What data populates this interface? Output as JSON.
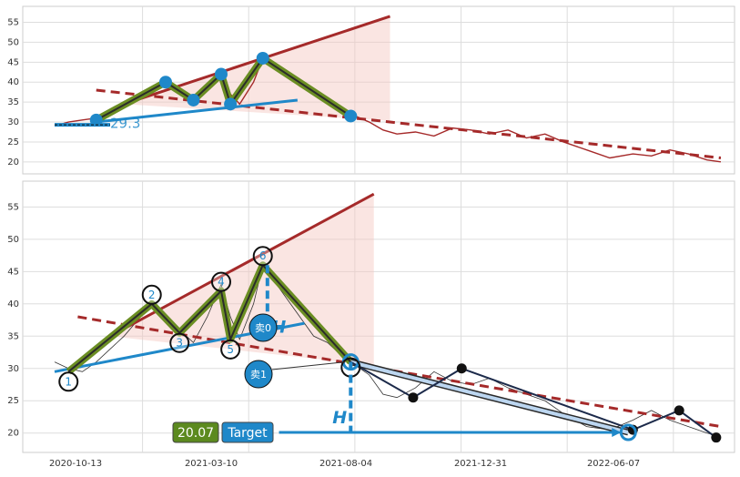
{
  "chart_data": [
    {
      "panel": "top",
      "type": "line",
      "title": "",
      "xlabel": "",
      "ylabel": "",
      "ylim": [
        17,
        59
      ],
      "yticks": [
        20,
        25,
        30,
        35,
        40,
        45,
        50,
        55
      ],
      "grid": true,
      "price_series": [
        {
          "x": 0,
          "y": 29
        },
        {
          "x": 6,
          "y": 30
        },
        {
          "x": 12,
          "y": 30.5
        },
        {
          "x": 18,
          "y": 31
        },
        {
          "x": 24,
          "y": 32
        },
        {
          "x": 30,
          "y": 34
        },
        {
          "x": 36,
          "y": 36
        },
        {
          "x": 42,
          "y": 38
        },
        {
          "x": 48,
          "y": 40
        },
        {
          "x": 54,
          "y": 37
        },
        {
          "x": 60,
          "y": 35.5
        },
        {
          "x": 66,
          "y": 38
        },
        {
          "x": 72,
          "y": 42
        },
        {
          "x": 76,
          "y": 37
        },
        {
          "x": 80,
          "y": 34.5
        },
        {
          "x": 86,
          "y": 40
        },
        {
          "x": 90,
          "y": 46
        },
        {
          "x": 94,
          "y": 44
        },
        {
          "x": 100,
          "y": 42
        },
        {
          "x": 106,
          "y": 39
        },
        {
          "x": 112,
          "y": 37
        },
        {
          "x": 118,
          "y": 35
        },
        {
          "x": 124,
          "y": 33
        },
        {
          "x": 130,
          "y": 31.5
        },
        {
          "x": 136,
          "y": 30
        },
        {
          "x": 142,
          "y": 28
        },
        {
          "x": 148,
          "y": 27
        },
        {
          "x": 156,
          "y": 27.5
        },
        {
          "x": 164,
          "y": 26.5
        },
        {
          "x": 172,
          "y": 28.5
        },
        {
          "x": 180,
          "y": 28
        },
        {
          "x": 188,
          "y": 27
        },
        {
          "x": 196,
          "y": 28
        },
        {
          "x": 204,
          "y": 26
        },
        {
          "x": 212,
          "y": 27
        },
        {
          "x": 220,
          "y": 25
        },
        {
          "x": 230,
          "y": 23
        },
        {
          "x": 240,
          "y": 21
        },
        {
          "x": 250,
          "y": 22
        },
        {
          "x": 258,
          "y": 21.5
        },
        {
          "x": 266,
          "y": 23
        },
        {
          "x": 274,
          "y": 22
        },
        {
          "x": 282,
          "y": 20.5
        },
        {
          "x": 288,
          "y": 20
        }
      ],
      "pattern_points": [
        {
          "x": 18,
          "y": 30.5
        },
        {
          "x": 48,
          "y": 40
        },
        {
          "x": 60,
          "y": 35.5
        },
        {
          "x": 72,
          "y": 42
        },
        {
          "x": 76,
          "y": 34.5
        },
        {
          "x": 90,
          "y": 46
        },
        {
          "x": 128,
          "y": 31.5
        }
      ],
      "upper_trendline": [
        {
          "x": 30,
          "y": 34.5
        },
        {
          "x": 145,
          "y": 56.5
        }
      ],
      "lower_trendline_dashed": [
        {
          "x": 18,
          "y": 38
        },
        {
          "x": 288,
          "y": 21
        }
      ],
      "support_line": [
        {
          "x": 18,
          "y": 30
        },
        {
          "x": 105,
          "y": 35.5
        }
      ],
      "annotation_text": "29.3",
      "target_triangle_shaded": [
        {
          "x": 30,
          "y": 34.5
        },
        {
          "x": 145,
          "y": 56.5
        },
        {
          "x": 145,
          "y": 30.3
        }
      ]
    },
    {
      "panel": "bottom",
      "type": "line",
      "title": "",
      "xlabel": "",
      "ylabel": "",
      "ylim": [
        17,
        59
      ],
      "yticks": [
        20,
        25,
        30,
        35,
        40,
        45,
        50,
        55
      ],
      "grid": true,
      "x_tick_labels": [
        "2020-10-13",
        "2021-03-10",
        "2021-08-04",
        "2021-12-31",
        "2022-06-07"
      ],
      "price_series": [
        {
          "x": 0,
          "y": 31
        },
        {
          "x": 6,
          "y": 30
        },
        {
          "x": 12,
          "y": 29.5
        },
        {
          "x": 18,
          "y": 31
        },
        {
          "x": 24,
          "y": 33
        },
        {
          "x": 30,
          "y": 35
        },
        {
          "x": 36,
          "y": 37.5
        },
        {
          "x": 42,
          "y": 40
        },
        {
          "x": 48,
          "y": 38
        },
        {
          "x": 54,
          "y": 36
        },
        {
          "x": 60,
          "y": 34
        },
        {
          "x": 66,
          "y": 38
        },
        {
          "x": 72,
          "y": 43
        },
        {
          "x": 76,
          "y": 38
        },
        {
          "x": 80,
          "y": 34.5
        },
        {
          "x": 86,
          "y": 40
        },
        {
          "x": 90,
          "y": 46
        },
        {
          "x": 94,
          "y": 44
        },
        {
          "x": 100,
          "y": 41
        },
        {
          "x": 106,
          "y": 38
        },
        {
          "x": 112,
          "y": 35
        },
        {
          "x": 118,
          "y": 34
        },
        {
          "x": 124,
          "y": 32
        },
        {
          "x": 130,
          "y": 30.5
        },
        {
          "x": 136,
          "y": 29
        },
        {
          "x": 142,
          "y": 26
        },
        {
          "x": 148,
          "y": 25.5
        },
        {
          "x": 156,
          "y": 27
        },
        {
          "x": 164,
          "y": 29.5
        },
        {
          "x": 172,
          "y": 28
        },
        {
          "x": 180,
          "y": 27.5
        },
        {
          "x": 188,
          "y": 28.5
        },
        {
          "x": 196,
          "y": 27
        },
        {
          "x": 204,
          "y": 26
        },
        {
          "x": 212,
          "y": 25
        },
        {
          "x": 220,
          "y": 23
        },
        {
          "x": 230,
          "y": 21
        },
        {
          "x": 240,
          "y": 20.5
        },
        {
          "x": 250,
          "y": 22
        },
        {
          "x": 258,
          "y": 23.5
        },
        {
          "x": 266,
          "y": 22
        },
        {
          "x": 274,
          "y": 21
        },
        {
          "x": 282,
          "y": 20
        },
        {
          "x": 288,
          "y": 19.5
        }
      ],
      "pattern_points": [
        {
          "label": "1",
          "x": 6,
          "y": 29.5
        },
        {
          "label": "2",
          "x": 42,
          "y": 40
        },
        {
          "label": "3",
          "x": 54,
          "y": 35.5
        },
        {
          "label": "4",
          "x": 72,
          "y": 42
        },
        {
          "label": "5",
          "x": 76,
          "y": 34.5
        },
        {
          "label": "6",
          "x": 90,
          "y": 46
        }
      ],
      "zigzag_ends": [
        {
          "x": 90,
          "y": 46
        },
        {
          "x": 128,
          "y": 31
        }
      ],
      "upper_trendline": [
        {
          "x": 24,
          "y": 35
        },
        {
          "x": 138,
          "y": 57
        }
      ],
      "lower_trendline_dashed": [
        {
          "x": 10,
          "y": 38
        },
        {
          "x": 288,
          "y": 21
        }
      ],
      "support_line": [
        {
          "x": 0,
          "y": 29.5
        },
        {
          "x": 108,
          "y": 37
        }
      ],
      "target_triangle_shaded": [
        {
          "x": 24,
          "y": 35
        },
        {
          "x": 138,
          "y": 57
        },
        {
          "x": 138,
          "y": 30.5
        }
      ],
      "breakout_point": {
        "x": 128,
        "y": 31
      },
      "black_markers": [
        {
          "x": 155,
          "y": 25.5
        },
        {
          "x": 176,
          "y": 30
        },
        {
          "x": 250,
          "y": 20.5
        },
        {
          "x": 270,
          "y": 23.5
        },
        {
          "x": 286,
          "y": 19.3
        }
      ],
      "target_point": {
        "x": 248,
        "y": 20.1
      },
      "measure_h_labels": [
        "H",
        "H"
      ],
      "sell_markers": [
        {
          "label": "卖0",
          "x": 100,
          "y": 36
        },
        {
          "label": "卖1",
          "x": 96,
          "y": 29
        }
      ],
      "target_value": "20.07",
      "target_label": "Target"
    }
  ],
  "colors": {
    "price": "#a52a2a",
    "pattern_line_outer": "#6b8e23",
    "pattern_line_inner": "#2b2b2b",
    "trend": "#a52a2a",
    "support": "#1f88c9",
    "shade": "#f4c6bf",
    "marker_blue": "#1f88c9",
    "target_green": "#5c8a1f"
  }
}
